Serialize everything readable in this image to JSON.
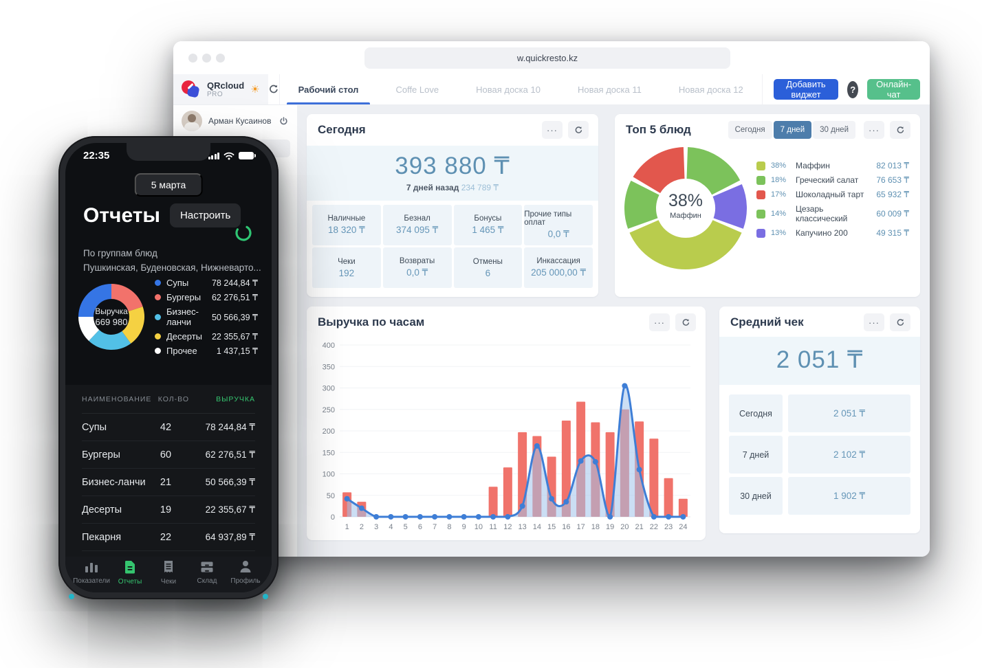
{
  "browser": {
    "url": "w.quickresto.kz",
    "brand": {
      "name": "QRcloud",
      "plan": "PRO"
    },
    "user": {
      "name": "Арман Кусаинов"
    },
    "tabs": [
      {
        "label": "Рабочий стол",
        "active": true
      },
      {
        "label": "Coffe Love",
        "active": false
      },
      {
        "label": "Новая доска 10",
        "active": false
      },
      {
        "label": "Новая доска 11",
        "active": false
      },
      {
        "label": "Новая доска 12",
        "active": false
      }
    ],
    "actions": {
      "add_widget": "Добавить виджет",
      "help": "?",
      "chat": "Онлайн-чат"
    }
  },
  "today_widget": {
    "title": "Сегодня",
    "total": "393 880 ₸",
    "compare_label": "7 дней назад",
    "compare_value": "234 789 ₸",
    "tiles": [
      {
        "label": "Наличные",
        "value": "18 320 ₸"
      },
      {
        "label": "Безнал",
        "value": "374 095 ₸"
      },
      {
        "label": "Бонусы",
        "value": "1 465 ₸"
      },
      {
        "label": "Прочие типы оплат",
        "value": "0,0 ₸"
      },
      {
        "label": "Чеки",
        "value": "192"
      },
      {
        "label": "Возвраты",
        "value": "0,0 ₸"
      },
      {
        "label": "Отмены",
        "value": "6"
      },
      {
        "label": "Инкассация",
        "value": "205 000,00 ₸"
      }
    ]
  },
  "top5_widget": {
    "title": "Топ 5 блюд",
    "periods": [
      {
        "label": "Сегодня",
        "active": false
      },
      {
        "label": "7 дней",
        "active": true
      },
      {
        "label": "30 дней",
        "active": false
      }
    ],
    "center": {
      "percent": "38%",
      "label": "Маффин"
    },
    "chart_data": {
      "type": "pie",
      "legend": [
        {
          "percent": "38%",
          "name": "Маффин",
          "value": "82 013 ₸",
          "color": "#b9cc4d"
        },
        {
          "percent": "18%",
          "name": "Греческий салат",
          "value": "76 653 ₸",
          "color": "#7cc25b"
        },
        {
          "percent": "17%",
          "name": "Шоколадный тарт",
          "value": "65 932 ₸",
          "color": "#e2574d"
        },
        {
          "percent": "14%",
          "name": "Цезарь классический",
          "value": "60 009 ₸",
          "color": "#7cc25b"
        },
        {
          "percent": "13%",
          "name": "Капучино 200",
          "value": "49 315 ₸",
          "color": "#7a6ee2"
        }
      ],
      "segments_clockwise_from_top": [
        {
          "name": "Греческий салат",
          "fraction": 18,
          "color": "#7cc25b"
        },
        {
          "name": "Капучино 200",
          "fraction": 13,
          "color": "#7a6ee2"
        },
        {
          "name": "Маффин",
          "fraction": 38,
          "color": "#b9cc4d"
        },
        {
          "name": "Цезарь классический",
          "fraction": 14,
          "color": "#7cc25b"
        },
        {
          "name": "Шоколадный тарт",
          "fraction": 17,
          "color": "#e2574d"
        }
      ]
    }
  },
  "hourly_widget": {
    "title": "Выручка по часам",
    "chart_data": {
      "type": "bar",
      "x": [
        1,
        2,
        3,
        4,
        5,
        6,
        7,
        8,
        9,
        10,
        11,
        12,
        13,
        14,
        15,
        16,
        17,
        18,
        19,
        20,
        21,
        22,
        23,
        24
      ],
      "series": [
        {
          "name": "bars",
          "values": [
            57,
            35,
            0,
            0,
            0,
            0,
            0,
            0,
            0,
            0,
            70,
            115,
            197,
            188,
            140,
            224,
            268,
            220,
            197,
            250,
            222,
            182,
            90,
            42
          ]
        },
        {
          "name": "line",
          "values": [
            42,
            20,
            0,
            0,
            0,
            0,
            0,
            0,
            0,
            0,
            0,
            0,
            25,
            165,
            42,
            35,
            130,
            128,
            0,
            305,
            110,
            0,
            0,
            0
          ]
        }
      ],
      "ylim": [
        0,
        400
      ],
      "yticks": [
        0,
        50,
        100,
        150,
        200,
        250,
        300,
        350,
        400
      ],
      "grid": true,
      "bar_color": "#f0736b",
      "line_color": "#3e7ed6",
      "area_color": "rgba(160,195,235,0.55)"
    }
  },
  "avg_check_widget": {
    "title": "Средний чек",
    "total": "2 051 ₸",
    "rows": [
      {
        "label": "Сегодня",
        "value": "2 051 ₸"
      },
      {
        "label": "7 дней",
        "value": "2 102 ₸"
      },
      {
        "label": "30 дней",
        "value": "1 902 ₸"
      }
    ]
  },
  "phone": {
    "status": {
      "time": "22:35"
    },
    "date_pill": "5 марта",
    "title": "Отчеты",
    "configure_label": "Настроить",
    "subtitle_line1": "По группам блюд",
    "subtitle_line2": "Пушкинская, Буденовская, Нижневарто...",
    "donut": {
      "center_label": "Выручка",
      "center_value": "669 980",
      "chart_data": {
        "type": "pie",
        "legend": [
          {
            "name": "Супы",
            "value": "78 244,84 ₸",
            "color": "#3575e5"
          },
          {
            "name": "Бургеры",
            "value": "62 276,51 ₸",
            "color": "#f2726b"
          },
          {
            "name": "Бизнес-ланчи",
            "value": "50 566,39 ₸",
            "color": "#52c0e7"
          },
          {
            "name": "Десерты",
            "value": "22 355,67 ₸",
            "color": "#f5d142"
          },
          {
            "name": "Прочее",
            "value": "1 437,15 ₸",
            "color": "#ffffff"
          }
        ],
        "segments_clockwise_from_top": [
          {
            "name": "Бургеры",
            "fraction": 20,
            "color": "#f2726b"
          },
          {
            "name": "Десерты",
            "fraction": 20,
            "color": "#f5d142"
          },
          {
            "name": "Бизнес-ланчи",
            "fraction": 22,
            "color": "#52c0e7"
          },
          {
            "name": "Прочее",
            "fraction": 13,
            "color": "#ffffff"
          },
          {
            "name": "Супы",
            "fraction": 25,
            "color": "#3575e5"
          }
        ]
      }
    },
    "table": {
      "headers": [
        "НАИМЕНОВАНИЕ",
        "КОЛ-ВО",
        "ВЫРУЧКА"
      ],
      "rows": [
        {
          "name": "Супы",
          "qty": "42",
          "revenue": "78 244,84 ₸"
        },
        {
          "name": "Бургеры",
          "qty": "60",
          "revenue": "62 276,51 ₸"
        },
        {
          "name": "Бизнес-ланчи",
          "qty": "21",
          "revenue": "50 566,39 ₸"
        },
        {
          "name": "Десерты",
          "qty": "19",
          "revenue": "22 355,67 ₸"
        },
        {
          "name": "Пекарня",
          "qty": "22",
          "revenue": "64 937,89 ₸"
        }
      ]
    },
    "nav": [
      {
        "label": "Показатели",
        "icon": "bar-chart",
        "active": false
      },
      {
        "label": "Отчеты",
        "icon": "report",
        "active": true
      },
      {
        "label": "Чеки",
        "icon": "receipt",
        "active": false
      },
      {
        "label": "Склад",
        "icon": "stock",
        "active": false
      },
      {
        "label": "Профиль",
        "icon": "profile",
        "active": false
      }
    ]
  }
}
